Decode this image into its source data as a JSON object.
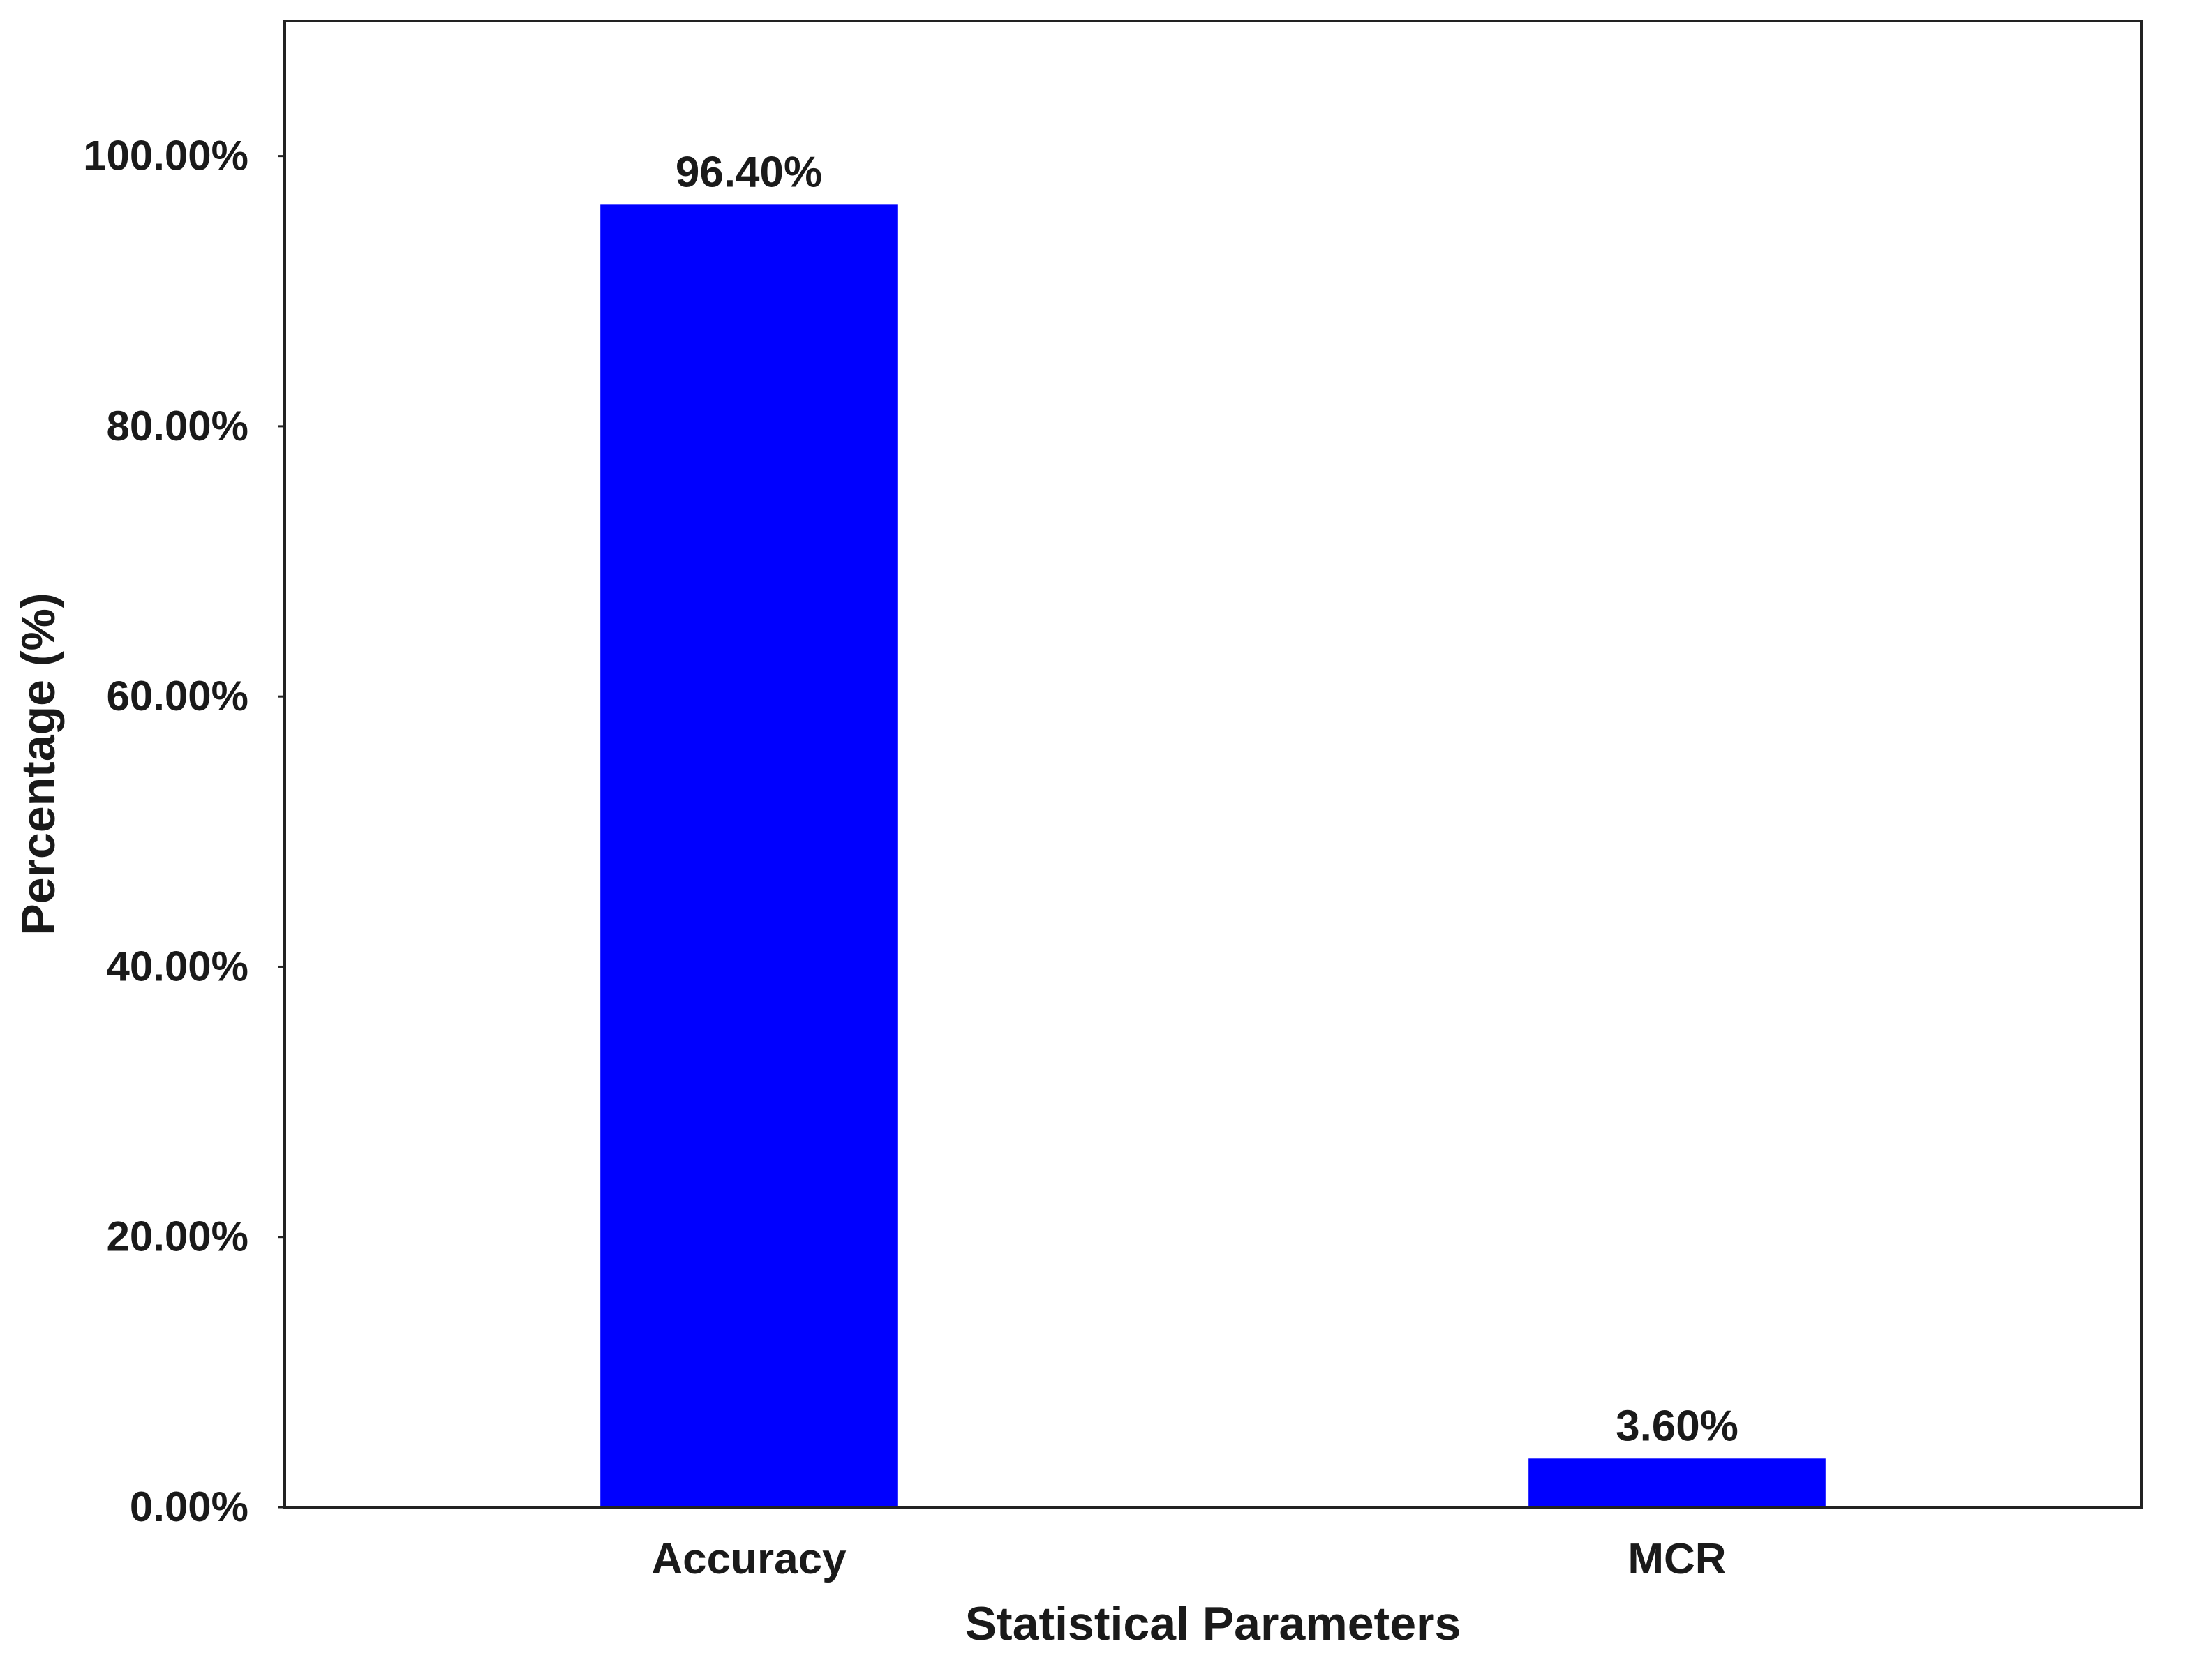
{
  "chart_data": {
    "type": "bar",
    "categories": [
      "Accuracy",
      "MCR"
    ],
    "values": [
      96.4,
      3.6
    ],
    "data_labels": [
      "96.40%",
      "3.60%"
    ],
    "title": "",
    "xlabel": "Statistical Parameters",
    "ylabel": "Percentage (%)",
    "ylim": [
      0,
      110
    ],
    "yticks": [
      0,
      20,
      40,
      60,
      80,
      100
    ],
    "ytick_labels": [
      "0.00%",
      "20.00%",
      "40.00%",
      "60.00%",
      "80.00%",
      "100.00%"
    ],
    "grid": false,
    "legend": "none",
    "bar_color": "#0000ff"
  }
}
